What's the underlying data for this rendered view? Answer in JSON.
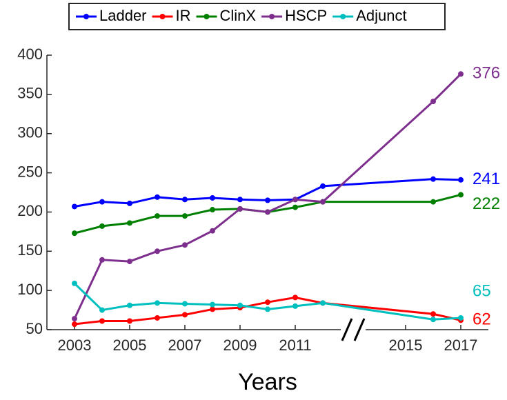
{
  "chart_data": {
    "type": "line",
    "x_label": "Years",
    "x": [
      2003,
      2004,
      2005,
      2006,
      2007,
      2008,
      2009,
      2010,
      2011,
      2012,
      2016,
      2017
    ],
    "series": [
      {
        "name": "Ladder",
        "color": "#0000ff",
        "values": [
          207,
          213,
          211,
          219,
          216,
          218,
          216,
          215,
          216,
          233,
          242,
          241
        ]
      },
      {
        "name": "IR",
        "color": "#ff0000",
        "values": [
          57,
          61,
          61,
          65,
          69,
          76,
          78,
          85,
          91,
          84,
          70,
          62
        ]
      },
      {
        "name": "ClinX",
        "color": "#008000",
        "values": [
          173,
          182,
          186,
          195,
          195,
          203,
          204,
          200,
          206,
          213,
          213,
          222
        ]
      },
      {
        "name": "HSCP",
        "color": "#7e2f8e",
        "values": [
          64,
          139,
          137,
          150,
          158,
          176,
          204,
          200,
          216,
          213,
          341,
          376
        ]
      },
      {
        "name": "Adjunct",
        "color": "#00bfbf",
        "values": [
          109,
          75,
          81,
          84,
          83,
          82,
          81,
          76,
          80,
          84,
          63,
          65
        ]
      }
    ],
    "xlim": [
      2002,
      2018
    ],
    "xticks": [
      2003,
      2005,
      2007,
      2009,
      2011,
      2015,
      2017
    ],
    "ylim": [
      50,
      400
    ],
    "yticks": [
      50,
      100,
      150,
      200,
      250,
      300,
      350,
      400
    ],
    "legend": "top"
  }
}
